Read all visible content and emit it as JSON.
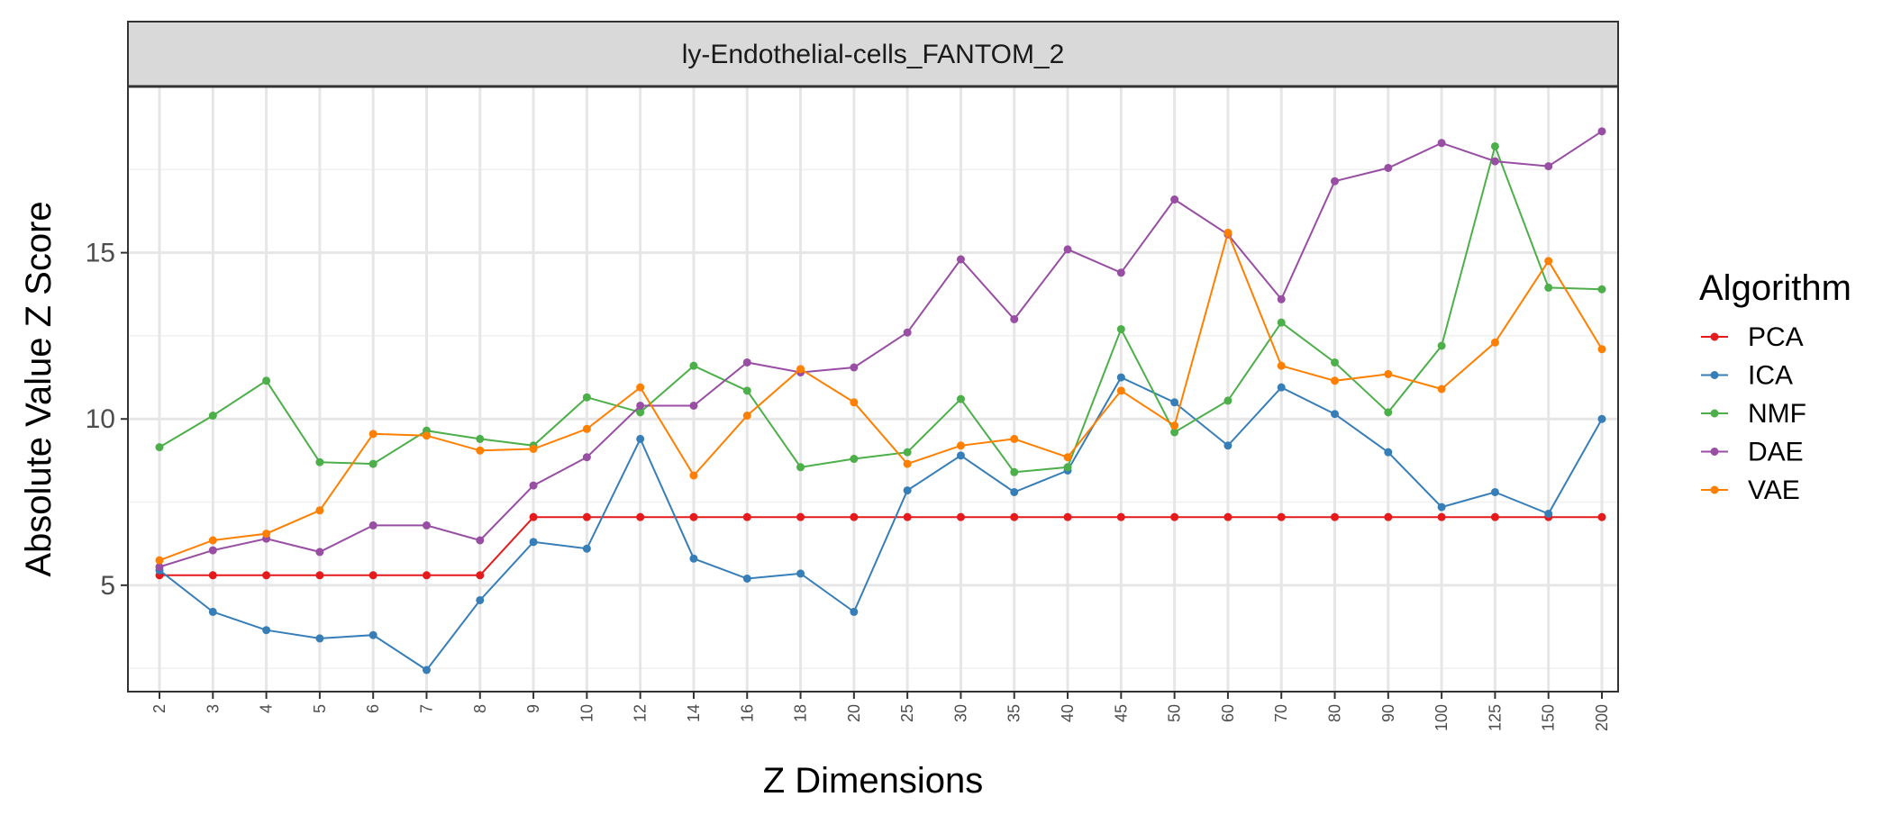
{
  "chart_data": {
    "type": "line",
    "title": "ly-Endothelial-cells_FANTOM_2",
    "xlabel": "Z Dimensions",
    "ylabel": "Absolute Value Z Score",
    "categories": [
      "2",
      "3",
      "4",
      "5",
      "6",
      "7",
      "8",
      "9",
      "10",
      "12",
      "14",
      "16",
      "18",
      "20",
      "25",
      "30",
      "35",
      "40",
      "45",
      "50",
      "60",
      "70",
      "80",
      "90",
      "100",
      "125",
      "150",
      "200"
    ],
    "y_ticks": [
      5,
      10,
      15
    ],
    "ylim": [
      1.8,
      20.0
    ],
    "grid": true,
    "legend": {
      "title": "Algorithm",
      "position": "right"
    },
    "series": [
      {
        "name": "PCA",
        "color": "#E41A1C",
        "values": [
          5.3,
          5.3,
          5.3,
          5.3,
          5.3,
          5.3,
          5.3,
          7.05,
          7.05,
          7.05,
          7.05,
          7.05,
          7.05,
          7.05,
          7.05,
          7.05,
          7.05,
          7.05,
          7.05,
          7.05,
          7.05,
          7.05,
          7.05,
          7.05,
          7.05,
          7.05,
          7.05,
          7.05
        ]
      },
      {
        "name": "ICA",
        "color": "#377EB8",
        "values": [
          5.45,
          4.2,
          3.65,
          3.4,
          3.5,
          2.45,
          4.55,
          6.3,
          6.1,
          9.4,
          5.8,
          5.2,
          5.35,
          4.2,
          7.85,
          8.9,
          7.8,
          8.45,
          11.25,
          10.5,
          9.2,
          10.95,
          10.15,
          9.0,
          7.35,
          7.8,
          7.15,
          10.0
        ]
      },
      {
        "name": "NMF",
        "color": "#4DAF4A",
        "values": [
          9.15,
          10.1,
          11.15,
          8.7,
          8.65,
          9.65,
          9.4,
          9.2,
          10.65,
          10.2,
          11.6,
          10.85,
          8.55,
          8.8,
          9.0,
          10.6,
          8.4,
          8.55,
          12.7,
          9.6,
          10.55,
          12.9,
          11.7,
          10.2,
          12.2,
          18.2,
          13.95,
          13.9
        ]
      },
      {
        "name": "DAE",
        "color": "#984EA3",
        "values": [
          5.55,
          6.05,
          6.4,
          6.0,
          6.8,
          6.8,
          6.35,
          8.0,
          8.85,
          10.4,
          10.4,
          11.7,
          11.4,
          11.55,
          12.6,
          14.8,
          13.0,
          15.1,
          14.4,
          16.6,
          15.55,
          13.6,
          17.15,
          17.55,
          18.3,
          17.75,
          17.6,
          18.65
        ]
      },
      {
        "name": "VAE",
        "color": "#FF7F00",
        "values": [
          5.75,
          6.35,
          6.55,
          7.25,
          9.55,
          9.5,
          9.05,
          9.1,
          9.7,
          10.95,
          8.3,
          10.1,
          11.5,
          10.5,
          8.65,
          9.2,
          9.4,
          8.85,
          10.85,
          9.8,
          15.6,
          11.6,
          11.15,
          11.35,
          10.9,
          12.3,
          14.75,
          12.1
        ]
      }
    ]
  }
}
